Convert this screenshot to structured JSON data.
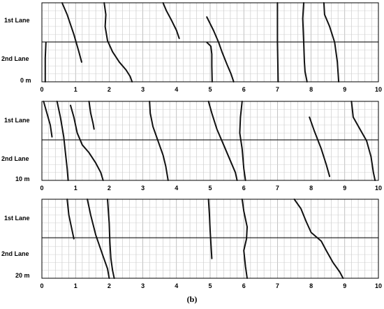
{
  "caption": "(b)",
  "chart_data": [
    {
      "type": "line",
      "lane_labels": [
        "1st Lane",
        "2nd Lane"
      ],
      "distance_label": "0 m",
      "xlim": [
        0,
        10
      ],
      "x_ticks": [
        "0",
        "1",
        "2",
        "3",
        "4",
        "5",
        "6",
        "7",
        "8",
        "9",
        "10"
      ],
      "trajectories": [
        [
          [
            0.6,
            0.0
          ],
          [
            0.75,
            0.15
          ],
          [
            0.95,
            0.4
          ],
          [
            1.1,
            0.62
          ],
          [
            1.18,
            0.75
          ]
        ],
        [
          [
            1.85,
            0.0
          ],
          [
            1.9,
            0.15
          ],
          [
            1.88,
            0.3
          ],
          [
            1.95,
            0.48
          ],
          [
            2.1,
            0.62
          ],
          [
            2.3,
            0.75
          ],
          [
            2.5,
            0.85
          ],
          [
            2.62,
            0.93
          ],
          [
            2.68,
            1.0
          ]
        ],
        [
          [
            3.6,
            0.0
          ],
          [
            3.7,
            0.1
          ],
          [
            3.85,
            0.22
          ],
          [
            4.0,
            0.35
          ],
          [
            4.08,
            0.45
          ]
        ],
        [
          [
            4.9,
            0.5
          ],
          [
            5.02,
            0.55
          ],
          [
            5.05,
            0.65
          ],
          [
            5.05,
            0.8
          ],
          [
            5.06,
            1.0
          ]
        ],
        [
          [
            4.9,
            0.18
          ],
          [
            5.1,
            0.35
          ],
          [
            5.25,
            0.5
          ],
          [
            5.35,
            0.62
          ],
          [
            5.5,
            0.78
          ],
          [
            5.62,
            0.9
          ],
          [
            5.7,
            1.0
          ]
        ],
        [
          [
            7.0,
            0.0
          ],
          [
            7.0,
            0.5
          ],
          [
            7.02,
            1.0
          ]
        ],
        [
          [
            7.78,
            0.0
          ],
          [
            7.75,
            0.2
          ],
          [
            7.78,
            0.5
          ],
          [
            7.8,
            0.75
          ],
          [
            7.82,
            0.87
          ],
          [
            7.88,
            1.0
          ]
        ],
        [
          [
            8.38,
            0.0
          ],
          [
            8.4,
            0.15
          ],
          [
            8.55,
            0.3
          ],
          [
            8.7,
            0.5
          ],
          [
            8.78,
            0.75
          ],
          [
            8.82,
            1.0
          ]
        ],
        [
          [
            0.12,
            0.5
          ],
          [
            0.1,
            0.7
          ],
          [
            0.1,
            1.0
          ]
        ]
      ]
    },
    {
      "type": "line",
      "lane_labels": [
        "1st Lane",
        "2nd Lane"
      ],
      "distance_label": "10 m",
      "xlim": [
        0,
        10
      ],
      "x_ticks": [
        "0",
        "1",
        "2",
        "3",
        "4",
        "5",
        "6",
        "7",
        "8",
        "9",
        "10"
      ],
      "trajectories": [
        [
          [
            0.05,
            0.0
          ],
          [
            0.15,
            0.15
          ],
          [
            0.25,
            0.3
          ],
          [
            0.3,
            0.45
          ]
        ],
        [
          [
            0.45,
            0.0
          ],
          [
            0.55,
            0.2
          ],
          [
            0.65,
            0.45
          ],
          [
            0.7,
            0.65
          ],
          [
            0.75,
            0.85
          ],
          [
            0.78,
            1.0
          ]
        ],
        [
          [
            0.85,
            0.05
          ],
          [
            0.95,
            0.2
          ],
          [
            1.05,
            0.4
          ],
          [
            1.2,
            0.55
          ],
          [
            1.4,
            0.65
          ],
          [
            1.6,
            0.78
          ],
          [
            1.75,
            0.9
          ],
          [
            1.82,
            1.0
          ]
        ],
        [
          [
            1.4,
            0.0
          ],
          [
            1.45,
            0.15
          ],
          [
            1.52,
            0.28
          ],
          [
            1.55,
            0.35
          ]
        ],
        [
          [
            3.2,
            0.0
          ],
          [
            3.22,
            0.15
          ],
          [
            3.3,
            0.32
          ],
          [
            3.45,
            0.5
          ],
          [
            3.6,
            0.68
          ],
          [
            3.68,
            0.82
          ],
          [
            3.75,
            1.0
          ]
        ],
        [
          [
            4.95,
            0.0
          ],
          [
            5.05,
            0.15
          ],
          [
            5.2,
            0.35
          ],
          [
            5.4,
            0.55
          ],
          [
            5.6,
            0.75
          ],
          [
            5.75,
            0.9
          ],
          [
            5.8,
            1.0
          ]
        ],
        [
          [
            5.95,
            0.0
          ],
          [
            5.9,
            0.2
          ],
          [
            5.88,
            0.4
          ],
          [
            5.95,
            0.6
          ],
          [
            6.0,
            0.85
          ],
          [
            6.05,
            1.0
          ]
        ],
        [
          [
            7.95,
            0.2
          ],
          [
            8.1,
            0.38
          ],
          [
            8.3,
            0.6
          ],
          [
            8.45,
            0.8
          ],
          [
            8.55,
            0.95
          ]
        ],
        [
          [
            9.2,
            0.0
          ],
          [
            9.25,
            0.2
          ],
          [
            9.45,
            0.35
          ],
          [
            9.65,
            0.5
          ],
          [
            9.78,
            0.7
          ],
          [
            9.85,
            0.9
          ],
          [
            9.9,
            1.0
          ]
        ]
      ]
    },
    {
      "type": "line",
      "lane_labels": [
        "1st Lane",
        "2nd Lane"
      ],
      "distance_label": "20 m",
      "xlim": [
        0,
        10
      ],
      "x_ticks": [
        "0",
        "1",
        "2",
        "3",
        "4",
        "5",
        "6",
        "7",
        "8",
        "9",
        "10"
      ],
      "trajectories": [
        [
          [
            0.75,
            0.0
          ],
          [
            0.8,
            0.2
          ],
          [
            0.9,
            0.4
          ],
          [
            0.95,
            0.5
          ]
        ],
        [
          [
            1.35,
            0.0
          ],
          [
            1.45,
            0.2
          ],
          [
            1.6,
            0.45
          ],
          [
            1.8,
            0.7
          ],
          [
            1.95,
            0.88
          ],
          [
            2.0,
            1.0
          ]
        ],
        [
          [
            1.95,
            0.0
          ],
          [
            2.0,
            0.3
          ],
          [
            2.02,
            0.55
          ],
          [
            2.05,
            0.75
          ],
          [
            2.1,
            0.9
          ],
          [
            2.15,
            1.0
          ]
        ],
        [
          [
            4.95,
            0.0
          ],
          [
            4.98,
            0.2
          ],
          [
            5.0,
            0.4
          ],
          [
            5.02,
            0.55
          ],
          [
            5.05,
            0.75
          ]
        ],
        [
          [
            5.95,
            0.0
          ],
          [
            6.0,
            0.15
          ],
          [
            6.1,
            0.35
          ],
          [
            6.08,
            0.5
          ],
          [
            6.0,
            0.65
          ],
          [
            6.05,
            0.85
          ],
          [
            6.1,
            1.0
          ]
        ],
        [
          [
            7.5,
            0.0
          ],
          [
            7.7,
            0.12
          ],
          [
            7.85,
            0.28
          ],
          [
            8.0,
            0.42
          ],
          [
            8.3,
            0.53
          ],
          [
            8.45,
            0.65
          ],
          [
            8.65,
            0.8
          ],
          [
            8.85,
            0.92
          ],
          [
            8.95,
            1.0
          ]
        ]
      ]
    }
  ]
}
